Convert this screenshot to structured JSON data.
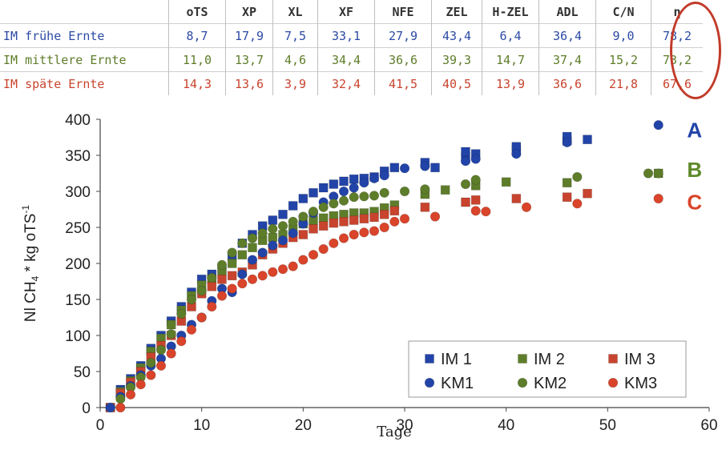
{
  "table": {
    "headers": [
      "oTS",
      "XP",
      "XL",
      "XF",
      "NFE",
      "ZEL",
      "H-ZEL",
      "ADL",
      "C/N",
      "η"
    ],
    "rows": [
      {
        "label": "IM frühe Ernte",
        "color": "#2c4aa5",
        "values": [
          "8,7",
          "17,9",
          "7,5",
          "33,1",
          "27,9",
          "43,4",
          "6,4",
          "36,4",
          "9,0",
          "78,2"
        ]
      },
      {
        "label": "IM mittlere Ernte",
        "color": "#5e7d2a",
        "values": [
          "11,0",
          "13,7",
          "4,6",
          "34,4",
          "36,6",
          "39,3",
          "14,7",
          "37,4",
          "15,2",
          "73,2"
        ]
      },
      {
        "label": "IM späte Ernte",
        "color": "#c8442e",
        "values": [
          "14,3",
          "13,6",
          "3,9",
          "32,4",
          "41,5",
          "40,5",
          "13,9",
          "36,6",
          "21,8",
          "67,6"
        ]
      }
    ]
  },
  "chart_data": {
    "type": "scatter",
    "xlabel": "Tage",
    "ylabel_main": "Nl CH",
    "ylabel_sub": "4",
    "ylabel_rest": " * kg oTS",
    "ylabel_sup": "-1",
    "xlim": [
      0,
      60
    ],
    "ylim": [
      0,
      400
    ],
    "xticks": [
      0,
      10,
      20,
      30,
      40,
      50,
      60
    ],
    "yticks": [
      0,
      50,
      100,
      150,
      200,
      250,
      300,
      350,
      400
    ],
    "grid": false,
    "legend_placement": "bottom-right",
    "curve_labels": [
      {
        "text": "A",
        "x": 57.5,
        "y": 385,
        "color": "#2244a8"
      },
      {
        "text": "B",
        "x": 57.5,
        "y": 330,
        "color": "#5e8a2a"
      },
      {
        "text": "C",
        "x": 57.5,
        "y": 285,
        "color": "#d9442a"
      }
    ],
    "series": [
      {
        "name": "IM 1",
        "marker": "square",
        "color": "#2244a8",
        "points": [
          [
            1,
            0
          ],
          [
            2,
            25
          ],
          [
            3,
            40
          ],
          [
            4,
            58
          ],
          [
            5,
            82
          ],
          [
            6,
            100
          ],
          [
            7,
            120
          ],
          [
            8,
            140
          ],
          [
            9,
            160
          ],
          [
            10,
            178
          ],
          [
            11,
            185
          ],
          [
            12,
            193
          ],
          [
            13,
            210
          ],
          [
            14,
            228
          ],
          [
            15,
            240
          ],
          [
            16,
            252
          ],
          [
            17,
            260
          ],
          [
            18,
            268
          ],
          [
            19,
            280
          ],
          [
            20,
            290
          ],
          [
            21,
            298
          ],
          [
            22,
            305
          ],
          [
            23,
            310
          ],
          [
            24,
            314
          ],
          [
            25,
            317
          ],
          [
            26,
            318
          ],
          [
            27,
            320
          ],
          [
            28,
            328
          ],
          [
            29,
            333
          ],
          [
            32,
            340
          ],
          [
            33,
            333
          ],
          [
            36,
            348
          ],
          [
            36,
            355
          ],
          [
            37,
            352
          ],
          [
            41,
            358
          ],
          [
            41,
            362
          ],
          [
            46,
            370
          ],
          [
            46,
            376
          ],
          [
            48,
            372
          ]
        ]
      },
      {
        "name": "IM 2",
        "marker": "square",
        "color": "#5e7d2a",
        "points": [
          [
            1,
            0
          ],
          [
            2,
            22
          ],
          [
            3,
            37
          ],
          [
            4,
            55
          ],
          [
            5,
            78
          ],
          [
            6,
            96
          ],
          [
            7,
            115
          ],
          [
            8,
            135
          ],
          [
            9,
            155
          ],
          [
            10,
            170
          ],
          [
            11,
            178
          ],
          [
            12,
            188
          ],
          [
            13,
            200
          ],
          [
            14,
            212
          ],
          [
            15,
            222
          ],
          [
            16,
            232
          ],
          [
            17,
            236
          ],
          [
            18,
            240
          ],
          [
            19,
            248
          ],
          [
            20,
            255
          ],
          [
            21,
            260
          ],
          [
            22,
            263
          ],
          [
            23,
            266
          ],
          [
            24,
            268
          ],
          [
            25,
            270
          ],
          [
            26,
            270
          ],
          [
            27,
            272
          ],
          [
            28,
            277
          ],
          [
            29,
            281
          ],
          [
            32,
            296
          ],
          [
            34,
            302
          ],
          [
            37,
            308
          ],
          [
            40,
            313
          ],
          [
            46,
            312
          ],
          [
            55,
            325
          ]
        ]
      },
      {
        "name": "IM 3",
        "marker": "square",
        "color": "#c8442e",
        "points": [
          [
            1,
            0
          ],
          [
            2,
            20
          ],
          [
            3,
            35
          ],
          [
            4,
            50
          ],
          [
            5,
            70
          ],
          [
            6,
            86
          ],
          [
            7,
            100
          ],
          [
            8,
            120
          ],
          [
            9,
            140
          ],
          [
            10,
            158
          ],
          [
            11,
            168
          ],
          [
            12,
            178
          ],
          [
            13,
            183
          ],
          [
            14,
            188
          ],
          [
            15,
            198
          ],
          [
            16,
            212
          ],
          [
            17,
            220
          ],
          [
            18,
            228
          ],
          [
            19,
            236
          ],
          [
            20,
            240
          ],
          [
            21,
            248
          ],
          [
            22,
            252
          ],
          [
            23,
            256
          ],
          [
            24,
            258
          ],
          [
            25,
            260
          ],
          [
            26,
            262
          ],
          [
            27,
            264
          ],
          [
            28,
            268
          ],
          [
            29,
            273
          ],
          [
            32,
            278
          ],
          [
            36,
            285
          ],
          [
            37,
            288
          ],
          [
            41,
            290
          ],
          [
            46,
            292
          ],
          [
            48,
            297
          ]
        ]
      },
      {
        "name": "KM1",
        "marker": "circle",
        "color": "#2244a8",
        "points": [
          [
            1,
            0
          ],
          [
            2,
            15
          ],
          [
            3,
            30
          ],
          [
            4,
            45
          ],
          [
            5,
            58
          ],
          [
            6,
            68
          ],
          [
            7,
            85
          ],
          [
            8,
            100
          ],
          [
            9,
            115
          ],
          [
            10,
            125
          ],
          [
            11,
            148
          ],
          [
            12,
            165
          ],
          [
            13,
            160
          ],
          [
            14,
            185
          ],
          [
            15,
            205
          ],
          [
            16,
            215
          ],
          [
            17,
            225
          ],
          [
            18,
            232
          ],
          [
            19,
            242
          ],
          [
            20,
            255
          ],
          [
            21,
            270
          ],
          [
            22,
            285
          ],
          [
            23,
            293
          ],
          [
            24,
            300
          ],
          [
            25,
            305
          ],
          [
            26,
            312
          ],
          [
            27,
            318
          ],
          [
            28,
            322
          ],
          [
            30,
            332
          ],
          [
            32,
            335
          ],
          [
            36,
            342
          ],
          [
            37,
            345
          ],
          [
            41,
            352
          ],
          [
            46,
            368
          ],
          [
            55,
            392
          ]
        ]
      },
      {
        "name": "KM2",
        "marker": "circle",
        "color": "#5e7d2a",
        "points": [
          [
            2,
            12
          ],
          [
            3,
            28
          ],
          [
            4,
            42
          ],
          [
            5,
            62
          ],
          [
            6,
            80
          ],
          [
            7,
            102
          ],
          [
            8,
            130
          ],
          [
            9,
            150
          ],
          [
            10,
            162
          ],
          [
            11,
            180
          ],
          [
            12,
            198
          ],
          [
            13,
            215
          ],
          [
            14,
            228
          ],
          [
            15,
            235
          ],
          [
            16,
            242
          ],
          [
            17,
            248
          ],
          [
            18,
            252
          ],
          [
            19,
            258
          ],
          [
            20,
            265
          ],
          [
            21,
            272
          ],
          [
            22,
            278
          ],
          [
            23,
            283
          ],
          [
            24,
            287
          ],
          [
            25,
            292
          ],
          [
            26,
            293
          ],
          [
            27,
            294
          ],
          [
            28,
            298
          ],
          [
            30,
            300
          ],
          [
            32,
            303
          ],
          [
            36,
            310
          ],
          [
            37,
            316
          ],
          [
            47,
            320
          ],
          [
            54,
            325
          ],
          [
            55,
            325
          ]
        ]
      },
      {
        "name": "KM3",
        "marker": "circle",
        "color": "#d9442a",
        "points": [
          [
            2,
            0
          ],
          [
            3,
            18
          ],
          [
            4,
            32
          ],
          [
            5,
            45
          ],
          [
            6,
            58
          ],
          [
            7,
            75
          ],
          [
            8,
            92
          ],
          [
            9,
            108
          ],
          [
            10,
            125
          ],
          [
            11,
            140
          ],
          [
            12,
            155
          ],
          [
            13,
            165
          ],
          [
            14,
            172
          ],
          [
            15,
            178
          ],
          [
            16,
            183
          ],
          [
            17,
            188
          ],
          [
            18,
            192
          ],
          [
            19,
            196
          ],
          [
            20,
            205
          ],
          [
            21,
            212
          ],
          [
            22,
            220
          ],
          [
            23,
            228
          ],
          [
            24,
            235
          ],
          [
            25,
            240
          ],
          [
            26,
            243
          ],
          [
            27,
            245
          ],
          [
            28,
            250
          ],
          [
            29,
            258
          ],
          [
            30,
            262
          ],
          [
            33,
            265
          ],
          [
            37,
            273
          ],
          [
            38,
            272
          ],
          [
            42,
            278
          ],
          [
            47,
            283
          ],
          [
            55,
            290
          ]
        ]
      }
    ]
  }
}
